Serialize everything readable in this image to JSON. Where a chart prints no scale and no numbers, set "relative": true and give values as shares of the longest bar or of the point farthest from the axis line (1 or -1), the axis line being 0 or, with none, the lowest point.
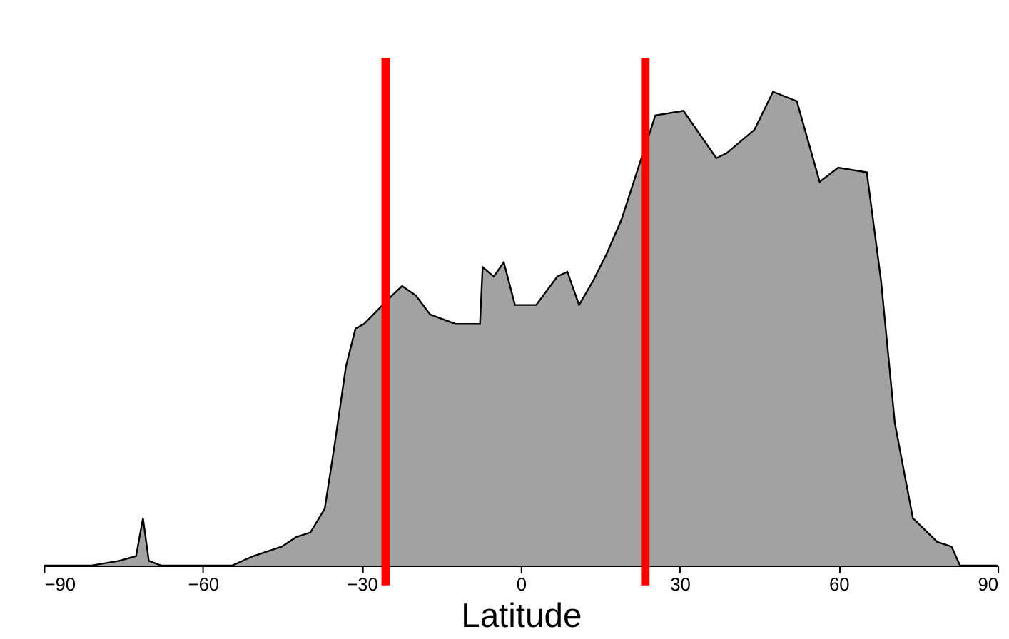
{
  "chart_data": {
    "type": "area",
    "relative": true,
    "xlabel": "Latitude",
    "xlim": [
      -90,
      90
    ],
    "xticks": [
      -90,
      -60,
      -30,
      0,
      30,
      60,
      90
    ],
    "grid": false,
    "series": [
      {
        "color": "#7a7a7a",
        "x": [
          -90,
          -81.2,
          -75.8,
          -72.6,
          -71.3,
          -70.2,
          -67.8,
          -54.5,
          -50.5,
          -45.1,
          -42.4,
          -39.7,
          -37.0,
          -35.2,
          -33.0,
          -31.2,
          -29.6,
          -24.3,
          -22.4,
          -19.8,
          -17.1,
          -12.3,
          -7.7,
          -7.2,
          -5.1,
          -3.2,
          -1.1,
          2.9,
          6.9,
          8.8,
          11.0,
          13.6,
          16.3,
          19.0,
          21.6,
          25.4,
          30.7,
          36.9,
          38.8,
          44.1,
          47.6,
          52.1,
          56.4,
          59.9,
          65.3,
          68.0,
          70.6,
          74.0,
          78.6,
          81.3,
          82.9,
          90
        ],
        "values": [
          0,
          0,
          0.01,
          0.02,
          0.1,
          0.01,
          0,
          0,
          0.02,
          0.04,
          0.06,
          0.07,
          0.12,
          0.25,
          0.42,
          0.5,
          0.51,
          0.57,
          0.59,
          0.57,
          0.53,
          0.51,
          0.51,
          0.63,
          0.61,
          0.64,
          0.55,
          0.55,
          0.61,
          0.62,
          0.55,
          0.6,
          0.66,
          0.73,
          0.82,
          0.95,
          0.96,
          0.86,
          0.87,
          0.92,
          1.0,
          0.98,
          0.81,
          0.84,
          0.83,
          0.6,
          0.3,
          0.1,
          0.05,
          0.04,
          0,
          0
        ]
      }
    ],
    "ref_lines": [
      {
        "axis": "x",
        "value": -25.5,
        "color": "#ff0000"
      },
      {
        "axis": "x",
        "value": 23.5,
        "color": "#ff0000"
      }
    ]
  }
}
